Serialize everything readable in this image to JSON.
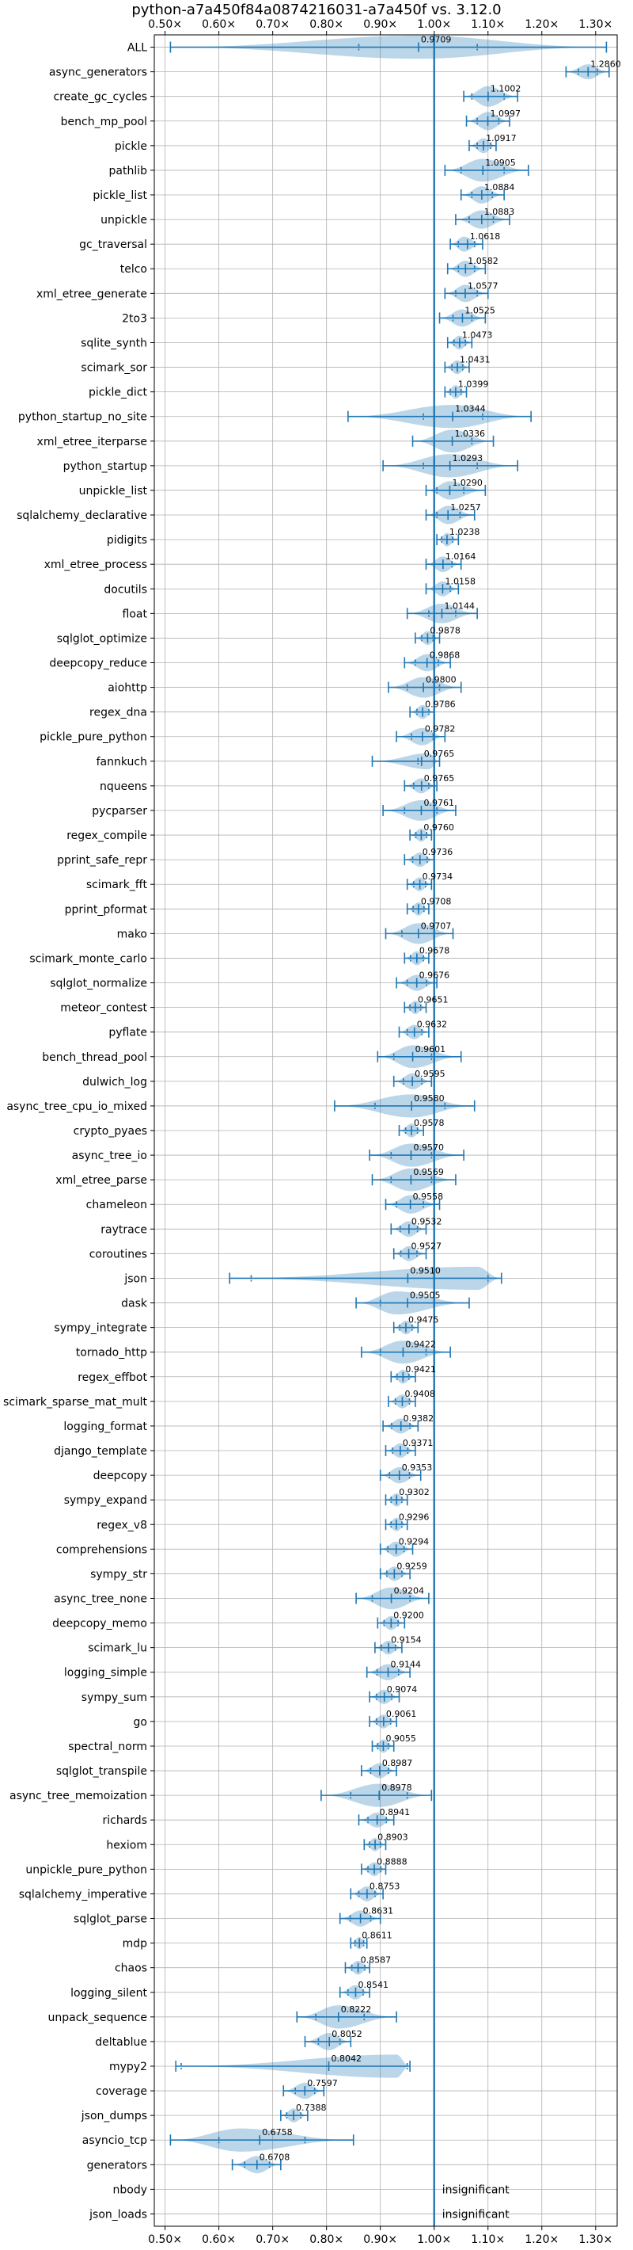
{
  "chart_data": {
    "type": "violin",
    "title": "python-a7a450f84a0874216031-a7a450f vs. 3.12.0",
    "xlim": [
      0.48,
      1.34
    ],
    "x_ticks": [
      0.5,
      0.6,
      0.7,
      0.8,
      0.9,
      1.0,
      1.1,
      1.2,
      1.3
    ],
    "x_tick_labels": [
      "0.50×",
      "0.60×",
      "0.70×",
      "0.80×",
      "0.90×",
      "1.00×",
      "1.10×",
      "1.20×",
      "1.30×"
    ],
    "x_ticks_on_top_and_bottom": true,
    "reference_line": 1.0,
    "grid": true,
    "insignificant_label": "insignificant",
    "benchmarks": [
      {
        "name": "ALL",
        "value": "0.9709",
        "min": 0.51,
        "max": 1.32,
        "center": 0.97,
        "width": 0.26,
        "q1": 0.86,
        "q3": 1.08
      },
      {
        "name": "async_generators",
        "value": "1.2860",
        "min": 1.245,
        "max": 1.325,
        "center": 1.286,
        "width": 0.05,
        "q1": 1.268,
        "q3": 1.303
      },
      {
        "name": "create_gc_cycles",
        "value": "1.1002",
        "min": 1.055,
        "max": 1.155,
        "center": 1.1,
        "width": 0.1,
        "q1": 1.07,
        "q3": 1.13
      },
      {
        "name": "bench_mp_pool",
        "value": "1.0997",
        "min": 1.06,
        "max": 1.14,
        "center": 1.1,
        "width": 0.08,
        "q1": 1.08,
        "q3": 1.12
      },
      {
        "name": "pickle",
        "value": "1.0917",
        "min": 1.065,
        "max": 1.115,
        "center": 1.092,
        "width": 0.05,
        "q1": 1.08,
        "q3": 1.105
      },
      {
        "name": "pathlib",
        "value": "1.0905",
        "min": 1.02,
        "max": 1.175,
        "center": 1.09,
        "width": 0.12,
        "q1": 1.05,
        "q3": 1.13
      },
      {
        "name": "pickle_list",
        "value": "1.0884",
        "min": 1.05,
        "max": 1.13,
        "center": 1.088,
        "width": 0.07,
        "q1": 1.07,
        "q3": 1.108
      },
      {
        "name": "unpickle",
        "value": "1.0883",
        "min": 1.04,
        "max": 1.14,
        "center": 1.088,
        "width": 0.08,
        "q1": 1.065,
        "q3": 1.11
      },
      {
        "name": "gc_traversal",
        "value": "1.0618",
        "min": 1.03,
        "max": 1.09,
        "center": 1.055,
        "width": 0.05,
        "q1": 1.045,
        "q3": 1.075
      },
      {
        "name": "telco",
        "value": "1.0582",
        "min": 1.025,
        "max": 1.095,
        "center": 1.058,
        "width": 0.06,
        "q1": 1.045,
        "q3": 1.075
      },
      {
        "name": "xml_etree_generate",
        "value": "1.0577",
        "min": 1.02,
        "max": 1.1,
        "center": 1.058,
        "width": 0.07,
        "q1": 1.04,
        "q3": 1.08
      },
      {
        "name": "2to3",
        "value": "1.0525",
        "min": 1.01,
        "max": 1.095,
        "center": 1.052,
        "width": 0.07,
        "q1": 1.035,
        "q3": 1.07
      },
      {
        "name": "sqlite_synth",
        "value": "1.0473",
        "min": 1.025,
        "max": 1.07,
        "center": 1.047,
        "width": 0.04,
        "q1": 1.037,
        "q3": 1.058
      },
      {
        "name": "scimark_sor",
        "value": "1.0431",
        "min": 1.02,
        "max": 1.065,
        "center": 1.043,
        "width": 0.04,
        "q1": 1.033,
        "q3": 1.053
      },
      {
        "name": "pickle_dict",
        "value": "1.0399",
        "min": 1.02,
        "max": 1.06,
        "center": 1.04,
        "width": 0.035,
        "q1": 1.03,
        "q3": 1.05
      },
      {
        "name": "python_startup_no_site",
        "value": "1.0344",
        "min": 0.84,
        "max": 1.18,
        "center": 1.034,
        "width": 0.3,
        "q1": 0.98,
        "q3": 1.09
      },
      {
        "name": "xml_etree_iterparse",
        "value": "1.0336",
        "min": 0.96,
        "max": 1.11,
        "center": 1.034,
        "width": 0.12,
        "q1": 1.0,
        "q3": 1.07
      },
      {
        "name": "python_startup",
        "value": "1.0293",
        "min": 0.905,
        "max": 1.155,
        "center": 1.029,
        "width": 0.2,
        "q1": 0.98,
        "q3": 1.08
      },
      {
        "name": "unpickle_list",
        "value": "1.0290",
        "min": 0.985,
        "max": 1.095,
        "center": 1.029,
        "width": 0.08,
        "q1": 1.005,
        "q3": 1.055
      },
      {
        "name": "sqlalchemy_declarative",
        "value": "1.0257",
        "min": 0.985,
        "max": 1.075,
        "center": 1.026,
        "width": 0.08,
        "q1": 1.005,
        "q3": 1.048
      },
      {
        "name": "pidigits",
        "value": "1.0238",
        "min": 1.005,
        "max": 1.045,
        "center": 1.024,
        "width": 0.035,
        "q1": 1.014,
        "q3": 1.034
      },
      {
        "name": "xml_etree_process",
        "value": "1.0164",
        "min": 0.985,
        "max": 1.05,
        "center": 1.016,
        "width": 0.055,
        "q1": 1.0,
        "q3": 1.033
      },
      {
        "name": "docutils",
        "value": "1.0158",
        "min": 0.985,
        "max": 1.045,
        "center": 1.016,
        "width": 0.05,
        "q1": 1.0,
        "q3": 1.03
      },
      {
        "name": "float",
        "value": "1.0144",
        "min": 0.95,
        "max": 1.08,
        "center": 1.014,
        "width": 0.09,
        "q1": 0.99,
        "q3": 1.04
      },
      {
        "name": "sqlglot_optimize",
        "value": "0.9878",
        "min": 0.965,
        "max": 1.01,
        "center": 0.988,
        "width": 0.04,
        "q1": 0.977,
        "q3": 0.998
      },
      {
        "name": "deepcopy_reduce",
        "value": "0.9868",
        "min": 0.945,
        "max": 1.03,
        "center": 0.987,
        "width": 0.07,
        "q1": 0.965,
        "q3": 1.008
      },
      {
        "name": "aiohttp",
        "value": "0.9800",
        "min": 0.915,
        "max": 1.05,
        "center": 0.98,
        "width": 0.1,
        "q1": 0.95,
        "q3": 1.01
      },
      {
        "name": "regex_dna",
        "value": "0.9786",
        "min": 0.955,
        "max": 1.0,
        "center": 0.979,
        "width": 0.04,
        "q1": 0.968,
        "q3": 0.99
      },
      {
        "name": "pickle_pure_python",
        "value": "0.9782",
        "min": 0.93,
        "max": 1.02,
        "center": 0.978,
        "width": 0.07,
        "q1": 0.958,
        "q3": 0.998
      },
      {
        "name": "fannkuch",
        "value": "0.9765",
        "min": 0.885,
        "max": 1.01,
        "center": 0.99,
        "width": 0.06,
        "q1": 0.97,
        "q3": 1.0
      },
      {
        "name": "nqueens",
        "value": "0.9765",
        "min": 0.945,
        "max": 1.005,
        "center": 0.976,
        "width": 0.05,
        "q1": 0.962,
        "q3": 0.99
      },
      {
        "name": "pycparser",
        "value": "0.9761",
        "min": 0.905,
        "max": 1.04,
        "center": 0.976,
        "width": 0.1,
        "q1": 0.945,
        "q3": 1.005
      },
      {
        "name": "regex_compile",
        "value": "0.9760",
        "min": 0.955,
        "max": 0.995,
        "center": 0.976,
        "width": 0.035,
        "q1": 0.966,
        "q3": 0.986
      },
      {
        "name": "pprint_safe_repr",
        "value": "0.9736",
        "min": 0.945,
        "max": 1.0,
        "center": 0.974,
        "width": 0.045,
        "q1": 0.96,
        "q3": 0.987
      },
      {
        "name": "scimark_fft",
        "value": "0.9734",
        "min": 0.95,
        "max": 0.995,
        "center": 0.973,
        "width": 0.04,
        "q1": 0.962,
        "q3": 0.984
      },
      {
        "name": "pprint_pformat",
        "value": "0.9708",
        "min": 0.95,
        "max": 0.99,
        "center": 0.971,
        "width": 0.035,
        "q1": 0.961,
        "q3": 0.981
      },
      {
        "name": "mako",
        "value": "0.9707",
        "min": 0.91,
        "max": 1.035,
        "center": 0.971,
        "width": 0.1,
        "q1": 0.94,
        "q3": 1.0
      },
      {
        "name": "scimark_monte_carlo",
        "value": "0.9678",
        "min": 0.945,
        "max": 0.99,
        "center": 0.968,
        "width": 0.04,
        "q1": 0.956,
        "q3": 0.98
      },
      {
        "name": "sqlglot_normalize",
        "value": "0.9676",
        "min": 0.93,
        "max": 1.005,
        "center": 0.968,
        "width": 0.06,
        "q1": 0.95,
        "q3": 0.986
      },
      {
        "name": "meteor_contest",
        "value": "0.9651",
        "min": 0.945,
        "max": 0.985,
        "center": 0.965,
        "width": 0.035,
        "q1": 0.955,
        "q3": 0.975
      },
      {
        "name": "pyflate",
        "value": "0.9632",
        "min": 0.935,
        "max": 0.99,
        "center": 0.963,
        "width": 0.045,
        "q1": 0.95,
        "q3": 0.977
      },
      {
        "name": "bench_thread_pool",
        "value": "0.9601",
        "min": 0.895,
        "max": 1.05,
        "center": 0.96,
        "width": 0.12,
        "q1": 0.925,
        "q3": 0.995
      },
      {
        "name": "dulwich_log",
        "value": "0.9595",
        "min": 0.925,
        "max": 0.995,
        "center": 0.96,
        "width": 0.06,
        "q1": 0.943,
        "q3": 0.977
      },
      {
        "name": "async_tree_cpu_io_mixed",
        "value": "0.9580",
        "min": 0.815,
        "max": 1.075,
        "center": 0.958,
        "width": 0.22,
        "q1": 0.89,
        "q3": 1.02
      },
      {
        "name": "crypto_pyaes",
        "value": "0.9578",
        "min": 0.935,
        "max": 0.98,
        "center": 0.958,
        "width": 0.04,
        "q1": 0.947,
        "q3": 0.969
      },
      {
        "name": "async_tree_io",
        "value": "0.9570",
        "min": 0.88,
        "max": 1.055,
        "center": 0.957,
        "width": 0.13,
        "q1": 0.92,
        "q3": 0.995
      },
      {
        "name": "xml_etree_parse",
        "value": "0.9569",
        "min": 0.885,
        "max": 1.04,
        "center": 0.957,
        "width": 0.12,
        "q1": 0.92,
        "q3": 0.995
      },
      {
        "name": "chameleon",
        "value": "0.9558",
        "min": 0.91,
        "max": 1.01,
        "center": 0.956,
        "width": 0.08,
        "q1": 0.93,
        "q3": 0.98
      },
      {
        "name": "raytrace",
        "value": "0.9532",
        "min": 0.92,
        "max": 0.985,
        "center": 0.953,
        "width": 0.055,
        "q1": 0.937,
        "q3": 0.969
      },
      {
        "name": "coroutines",
        "value": "0.9527",
        "min": 0.925,
        "max": 0.985,
        "center": 0.953,
        "width": 0.05,
        "q1": 0.938,
        "q3": 0.968
      },
      {
        "name": "json",
        "value": "0.9510",
        "min": 0.62,
        "max": 1.125,
        "center": 1.08,
        "width": 0.2,
        "q1": 0.66,
        "q3": 1.1
      },
      {
        "name": "dask",
        "value": "0.9505",
        "min": 0.855,
        "max": 1.065,
        "center": 0.93,
        "width": 0.17,
        "q1": 0.9,
        "q3": 1.0
      },
      {
        "name": "sympy_integrate",
        "value": "0.9475",
        "min": 0.925,
        "max": 0.97,
        "center": 0.948,
        "width": 0.04,
        "q1": 0.936,
        "q3": 0.959
      },
      {
        "name": "tornado_http",
        "value": "0.9422",
        "min": 0.865,
        "max": 1.03,
        "center": 0.942,
        "width": 0.12,
        "q1": 0.9,
        "q3": 0.985
      },
      {
        "name": "regex_effbot",
        "value": "0.9421",
        "min": 0.92,
        "max": 0.965,
        "center": 0.942,
        "width": 0.04,
        "q1": 0.931,
        "q3": 0.953
      },
      {
        "name": "scimark_sparse_mat_mult",
        "value": "0.9408",
        "min": 0.915,
        "max": 0.965,
        "center": 0.941,
        "width": 0.04,
        "q1": 0.928,
        "q3": 0.954
      },
      {
        "name": "logging_format",
        "value": "0.9382",
        "min": 0.905,
        "max": 0.97,
        "center": 0.938,
        "width": 0.05,
        "q1": 0.921,
        "q3": 0.955
      },
      {
        "name": "django_template",
        "value": "0.9371",
        "min": 0.91,
        "max": 0.965,
        "center": 0.937,
        "width": 0.045,
        "q1": 0.923,
        "q3": 0.951
      },
      {
        "name": "deepcopy",
        "value": "0.9353",
        "min": 0.9,
        "max": 0.975,
        "center": 0.935,
        "width": 0.06,
        "q1": 0.917,
        "q3": 0.954
      },
      {
        "name": "sympy_expand",
        "value": "0.9302",
        "min": 0.91,
        "max": 0.95,
        "center": 0.93,
        "width": 0.035,
        "q1": 0.92,
        "q3": 0.94
      },
      {
        "name": "regex_v8",
        "value": "0.9296",
        "min": 0.91,
        "max": 0.95,
        "center": 0.93,
        "width": 0.035,
        "q1": 0.92,
        "q3": 0.94
      },
      {
        "name": "comprehensions",
        "value": "0.9294",
        "min": 0.9,
        "max": 0.96,
        "center": 0.929,
        "width": 0.05,
        "q1": 0.914,
        "q3": 0.944
      },
      {
        "name": "sympy_str",
        "value": "0.9259",
        "min": 0.9,
        "max": 0.955,
        "center": 0.926,
        "width": 0.045,
        "q1": 0.912,
        "q3": 0.94
      },
      {
        "name": "async_tree_none",
        "value": "0.9204",
        "min": 0.855,
        "max": 0.99,
        "center": 0.92,
        "width": 0.11,
        "q1": 0.885,
        "q3": 0.955
      },
      {
        "name": "deepcopy_memo",
        "value": "0.9200",
        "min": 0.895,
        "max": 0.945,
        "center": 0.92,
        "width": 0.04,
        "q1": 0.907,
        "q3": 0.933
      },
      {
        "name": "scimark_lu",
        "value": "0.9154",
        "min": 0.89,
        "max": 0.94,
        "center": 0.915,
        "width": 0.04,
        "q1": 0.902,
        "q3": 0.928
      },
      {
        "name": "logging_simple",
        "value": "0.9144",
        "min": 0.875,
        "max": 0.955,
        "center": 0.914,
        "width": 0.06,
        "q1": 0.894,
        "q3": 0.934
      },
      {
        "name": "sympy_sum",
        "value": "0.9074",
        "min": 0.88,
        "max": 0.935,
        "center": 0.907,
        "width": 0.045,
        "q1": 0.893,
        "q3": 0.921
      },
      {
        "name": "go",
        "value": "0.9061",
        "min": 0.88,
        "max": 0.93,
        "center": 0.906,
        "width": 0.04,
        "q1": 0.893,
        "q3": 0.919
      },
      {
        "name": "spectral_norm",
        "value": "0.9055",
        "min": 0.885,
        "max": 0.925,
        "center": 0.906,
        "width": 0.035,
        "q1": 0.895,
        "q3": 0.915
      },
      {
        "name": "sqlglot_transpile",
        "value": "0.8987",
        "min": 0.865,
        "max": 0.93,
        "center": 0.899,
        "width": 0.05,
        "q1": 0.882,
        "q3": 0.915
      },
      {
        "name": "async_tree_memoization",
        "value": "0.8978",
        "min": 0.79,
        "max": 0.995,
        "center": 0.898,
        "width": 0.18,
        "q1": 0.845,
        "q3": 0.95
      },
      {
        "name": "richards",
        "value": "0.8941",
        "min": 0.86,
        "max": 0.925,
        "center": 0.894,
        "width": 0.05,
        "q1": 0.877,
        "q3": 0.911
      },
      {
        "name": "hexiom",
        "value": "0.8903",
        "min": 0.87,
        "max": 0.91,
        "center": 0.89,
        "width": 0.035,
        "q1": 0.88,
        "q3": 0.9
      },
      {
        "name": "unpickle_pure_python",
        "value": "0.8888",
        "min": 0.865,
        "max": 0.91,
        "center": 0.889,
        "width": 0.04,
        "q1": 0.877,
        "q3": 0.901
      },
      {
        "name": "sqlalchemy_imperative",
        "value": "0.8753",
        "min": 0.845,
        "max": 0.905,
        "center": 0.875,
        "width": 0.05,
        "q1": 0.86,
        "q3": 0.89
      },
      {
        "name": "sqlglot_parse",
        "value": "0.8631",
        "min": 0.825,
        "max": 0.9,
        "center": 0.863,
        "width": 0.06,
        "q1": 0.844,
        "q3": 0.882
      },
      {
        "name": "mdp",
        "value": "0.8611",
        "min": 0.845,
        "max": 0.875,
        "center": 0.861,
        "width": 0.025,
        "q1": 0.853,
        "q3": 0.869
      },
      {
        "name": "chaos",
        "value": "0.8587",
        "min": 0.835,
        "max": 0.88,
        "center": 0.859,
        "width": 0.04,
        "q1": 0.847,
        "q3": 0.871
      },
      {
        "name": "logging_silent",
        "value": "0.8541",
        "min": 0.825,
        "max": 0.88,
        "center": 0.854,
        "width": 0.045,
        "q1": 0.84,
        "q3": 0.868
      },
      {
        "name": "unpack_sequence",
        "value": "0.8222",
        "min": 0.745,
        "max": 0.93,
        "center": 0.822,
        "width": 0.14,
        "q1": 0.78,
        "q3": 0.87
      },
      {
        "name": "deltablue",
        "value": "0.8052",
        "min": 0.76,
        "max": 0.845,
        "center": 0.805,
        "width": 0.07,
        "q1": 0.785,
        "q3": 0.825
      },
      {
        "name": "mypy2",
        "value": "0.8042",
        "min": 0.52,
        "max": 0.955,
        "center": 0.93,
        "width": 0.22,
        "q1": 0.53,
        "q3": 0.95
      },
      {
        "name": "coverage",
        "value": "0.7597",
        "min": 0.72,
        "max": 0.795,
        "center": 0.76,
        "width": 0.06,
        "q1": 0.742,
        "q3": 0.778
      },
      {
        "name": "json_dumps",
        "value": "0.7388",
        "min": 0.715,
        "max": 0.765,
        "center": 0.739,
        "width": 0.04,
        "q1": 0.726,
        "q3": 0.752
      },
      {
        "name": "asyncio_tcp",
        "value": "0.6758",
        "min": 0.51,
        "max": 0.85,
        "center": 0.64,
        "width": 0.2,
        "q1": 0.6,
        "q3": 0.76
      },
      {
        "name": "generators",
        "value": "0.6708",
        "min": 0.625,
        "max": 0.715,
        "center": 0.671,
        "width": 0.07,
        "q1": 0.648,
        "q3": 0.694
      },
      {
        "name": "nbody",
        "value": "insignificant"
      },
      {
        "name": "json_loads",
        "value": "insignificant"
      }
    ]
  }
}
